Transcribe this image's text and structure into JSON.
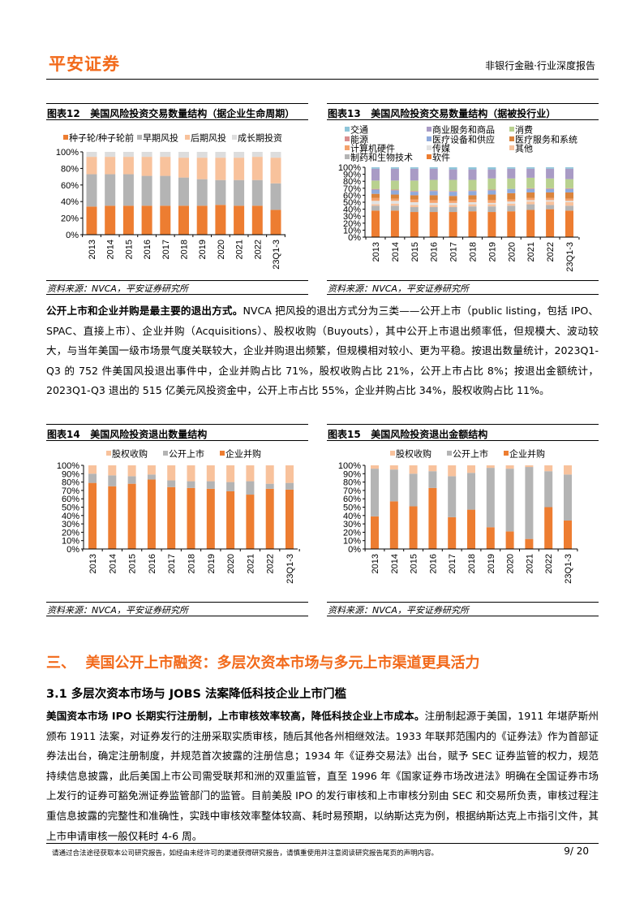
{
  "header": {
    "logo": "平安证券",
    "report_type": "非银行金融·行业深度报告"
  },
  "charts": [
    {
      "label": "图表12",
      "title": "美国风险投资交易数量结构（据企业生命周期）",
      "source": "资料来源：NVCA，平安证券研究所"
    },
    {
      "label": "图表13",
      "title": "美国风险投资交易数量结构（据被投行业）",
      "source": "资料来源：NVCA，平安证券研究所"
    },
    {
      "label": "图表14",
      "title": "美国风险投资退出数量结构",
      "source": "资料来源：NVCA，平安证券研究所"
    },
    {
      "label": "图表15",
      "title": "美国风险投资退出金额结构",
      "source": "资料来源：NVCA，平安证券研究所"
    }
  ],
  "chart_data": [
    {
      "type": "bar",
      "stacked": true,
      "title": "美国风险投资交易数量结构（据企业生命周期）",
      "categories": [
        "2013",
        "2014",
        "2015",
        "2016",
        "2017",
        "2018",
        "2019",
        "2020",
        "2021",
        "2022",
        "23Q1-3"
      ],
      "ylim": [
        0,
        100
      ],
      "yticks": [
        "0%",
        "20%",
        "40%",
        "60%",
        "80%",
        "100%"
      ],
      "legend": "top",
      "series": [
        {
          "name": "种子轮/种子轮前",
          "color": "#ED7D31",
          "values": [
            34,
            35,
            35,
            35,
            35,
            35,
            35,
            36,
            35,
            35,
            30
          ]
        },
        {
          "name": "早期风投",
          "color": "#B4B4B4",
          "values": [
            39,
            38,
            38,
            36,
            36,
            34,
            32,
            30,
            31,
            31,
            32
          ]
        },
        {
          "name": "后期风投",
          "color": "#F8C29C",
          "values": [
            21,
            21,
            21,
            23,
            23,
            24,
            26,
            27,
            27,
            28,
            31
          ]
        },
        {
          "name": "成长期投资",
          "color": "#DDDDDD",
          "values": [
            6,
            6,
            6,
            6,
            6,
            7,
            7,
            7,
            7,
            6,
            7
          ]
        }
      ]
    },
    {
      "type": "bar",
      "stacked": true,
      "title": "美国风险投资交易数量结构（据被投行业）",
      "categories": [
        "2013",
        "2014",
        "2015",
        "2016",
        "2017",
        "2018",
        "2019",
        "2020",
        "2021",
        "2022",
        "23Q1-3"
      ],
      "ylim": [
        0,
        100
      ],
      "yticks": [
        "0%",
        "10%",
        "20%",
        "30%",
        "40%",
        "50%",
        "60%",
        "70%",
        "80%",
        "90%",
        "100%"
      ],
      "legend": "top",
      "series": [
        {
          "name": "软件",
          "color": "#ED7D31",
          "values": [
            38,
            38,
            36,
            36,
            36,
            37,
            36,
            37,
            39,
            40,
            38
          ]
        },
        {
          "name": "制药和生物技术",
          "color": "#B4B4B4",
          "values": [
            7,
            7,
            7,
            7,
            7,
            7,
            8,
            8,
            8,
            6,
            7
          ]
        },
        {
          "name": "其他",
          "color": "#F8C29C",
          "values": [
            2,
            3,
            3,
            3,
            3,
            3,
            3,
            3,
            4,
            5,
            5
          ]
        },
        {
          "name": "传媒",
          "color": "#E2E2E2",
          "values": [
            5,
            4,
            4,
            3,
            3,
            3,
            2,
            3,
            2,
            2,
            2
          ]
        },
        {
          "name": "计算机硬件",
          "color": "#F4A26C",
          "values": [
            4,
            3,
            4,
            4,
            3,
            4,
            4,
            3,
            3,
            3,
            3
          ]
        },
        {
          "name": "医疗服务和系统",
          "color": "#DA843C",
          "values": [
            6,
            6,
            6,
            7,
            7,
            6,
            8,
            9,
            8,
            8,
            9
          ]
        },
        {
          "name": "医疗设备和供应",
          "color": "#8FAADC",
          "values": [
            6,
            6,
            5,
            6,
            6,
            6,
            6,
            6,
            5,
            5,
            5
          ]
        },
        {
          "name": "能源",
          "color": "#D98E8E",
          "values": [
            1,
            1,
            1,
            1,
            1,
            1,
            1,
            0,
            1,
            1,
            1
          ]
        },
        {
          "name": "消费",
          "color": "#B9D18F",
          "values": [
            12,
            13,
            15,
            15,
            16,
            15,
            16,
            15,
            15,
            14,
            13
          ]
        },
        {
          "name": "商业服务和商品",
          "color": "#A99BC5",
          "values": [
            17,
            17,
            17,
            16,
            15,
            15,
            13,
            14,
            13,
            14,
            15
          ]
        },
        {
          "name": "交通",
          "color": "#8EC5D9",
          "values": [
            2,
            2,
            2,
            2,
            3,
            3,
            3,
            2,
            2,
            2,
            2
          ]
        }
      ],
      "legend_order": [
        "交通",
        "商业服务和商品",
        "消费",
        "能源",
        "医疗设备和供应",
        "医疗服务和系统",
        "计算机硬件",
        "传媒",
        "其他",
        "制药和生物技术",
        "软件"
      ]
    },
    {
      "type": "bar",
      "stacked": true,
      "title": "美国风险投资退出数量结构",
      "categories": [
        "2013",
        "2014",
        "2015",
        "2016",
        "2017",
        "2018",
        "2019",
        "2020",
        "2021",
        "2022",
        "23Q1-3"
      ],
      "ylim": [
        0,
        100
      ],
      "yticks": [
        "0%",
        "10%",
        "20%",
        "30%",
        "40%",
        "50%",
        "60%",
        "70%",
        "80%",
        "90%",
        "100%"
      ],
      "legend": "top",
      "series": [
        {
          "name": "企业并购",
          "color": "#ED7D31",
          "values": [
            79,
            75,
            78,
            83,
            74,
            73,
            72,
            69,
            65,
            72,
            71
          ]
        },
        {
          "name": "公开上市",
          "color": "#B4B4B4",
          "values": [
            11,
            13,
            9,
            6,
            8,
            8,
            9,
            11,
            16,
            6,
            8
          ]
        },
        {
          "name": "股权收购",
          "color": "#F8C29C",
          "values": [
            10,
            12,
            13,
            11,
            18,
            19,
            19,
            20,
            19,
            22,
            21
          ]
        }
      ],
      "legend_order": [
        "股权收购",
        "公开上市",
        "企业并购"
      ]
    },
    {
      "type": "bar",
      "stacked": true,
      "title": "美国风险投资退出金额结构",
      "categories": [
        "2013",
        "2014",
        "2015",
        "2016",
        "2017",
        "2018",
        "2019",
        "2020",
        "2021",
        "2022",
        "23Q1-3"
      ],
      "ylim": [
        0,
        100
      ],
      "yticks": [
        "0%",
        "10%",
        "20%",
        "30%",
        "40%",
        "50%",
        "60%",
        "70%",
        "80%",
        "90%",
        "100%"
      ],
      "legend": "top",
      "series": [
        {
          "name": "企业并购",
          "color": "#ED7D31",
          "values": [
            39,
            57,
            51,
            73,
            38,
            47,
            26,
            21,
            12,
            50,
            34
          ]
        },
        {
          "name": "公开上市",
          "color": "#B4B4B4",
          "values": [
            57,
            38,
            39,
            20,
            49,
            44,
            71,
            75,
            86,
            43,
            55
          ]
        },
        {
          "name": "股权收购",
          "color": "#F8C29C",
          "values": [
            4,
            5,
            10,
            7,
            13,
            9,
            3,
            4,
            2,
            7,
            11
          ]
        }
      ],
      "legend_order": [
        "股权收购",
        "公开上市",
        "企业并购"
      ]
    }
  ],
  "body": {
    "para1_bold": "公开上市和企业并购是最主要的退出方式。",
    "para1": "NVCA 把风投的退出方式分为三类——公开上市（public listing，包括 IPO、SPAC、直接上市）、企业并购（Acquisitions）、股权收购（Buyouts），其中公开上市退出频率低，但规模大、波动较大，与当年美国一级市场景气度关联较大，企业并购退出频繁，但规模相对较小、更为平稳。按退出数量统计，2023Q1-Q3 的 752 件美国风投退出事件中，企业并购占比 71%，股权收购占比 21%，公开上市占比 8%；按退出金额统计，2023Q1-Q3 退出的 515 亿美元风投资金中，公开上市占比 55%，企业并购占比 34%，股权收购占比 11%。",
    "section_title": "三、  美国公开上市融资：多层次资本市场与多元上市渠道更具活力",
    "subsection_title": "3.1 多层次资本市场与 JOBS 法案降低科技企业上市门槛",
    "para2_bold": "美国资本市场 IPO 长期实行注册制，上市审核效率较高，降低科技企业上市成本。",
    "para2": "注册制起源于美国，1911 年堪萨斯州颁布 1911 法案，对证券发行的注册采取实质审核，随后其他各州相继效法。1933 年联邦范围内的《证券法》作为首部证券法出台，确定注册制度，并规范首次披露的注册信息；1934 年《证券交易法》出台，赋予 SEC 证券监管的权力，规范持续信息披露，此后美国上市公司需受联邦和洲的双重监管，直至 1996 年《国家证券市场改进法》明确在全国证券市场上发行的证券可豁免洲证券监管部门的监管。目前美股 IPO 的发行审核和上市审核分别由 SEC 和交易所负责，审核过程注重信息披露的完整性和准确性，实践中审核效率整体较高、耗时易预期，以纳斯达克为例，根据纳斯达克上市指引文件，其上市申请审核一般仅耗时 4-6 周。"
  },
  "footer": {
    "disclaimer": "请通过合法途径获取本公司研究报告，如经由未经许可的渠道获得研究报告，请慎重使用并注意阅读研究报告尾页的声明内容。",
    "page": "9/ 20"
  }
}
